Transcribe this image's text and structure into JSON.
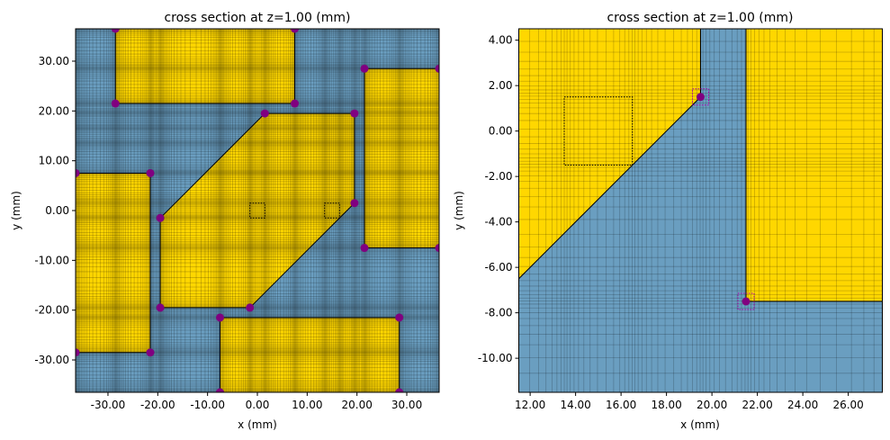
{
  "colors": {
    "background_medium": "#6a9ec0",
    "structure": "#ffd700",
    "mesh_line": "#000000",
    "vertex": "#800080",
    "vertex_box": "#aa00aa",
    "outline": "#000000"
  },
  "chart_data": [
    {
      "type": "cross-section",
      "title": "cross section at z=1.00 (mm)",
      "xlabel": "x (mm)",
      "ylabel": "y (mm)",
      "xlim": [
        -36.5,
        36.5
      ],
      "ylim": [
        -36.5,
        36.5
      ],
      "xticks": [
        -30,
        -20,
        -10,
        0,
        10,
        20,
        30
      ],
      "xtick_labels": [
        "-30.00",
        "-20.00",
        "-10.00",
        "0.00",
        "10.00",
        "20.00",
        "30.00"
      ],
      "yticks": [
        30,
        20,
        10,
        0,
        -10,
        -20,
        -30
      ],
      "ytick_labels": [
        "30.00",
        "20.00",
        "10.00",
        "0.00",
        "-10.00",
        "-20.00",
        "-30.00"
      ],
      "structures": [
        [
          [
            -28.5,
            21.5
          ],
          [
            7.5,
            21.5
          ],
          [
            7.5,
            36.5
          ],
          [
            -28.5,
            36.5
          ]
        ],
        [
          [
            21.5,
            -7.5
          ],
          [
            36.5,
            -7.5
          ],
          [
            36.5,
            28.5
          ],
          [
            21.5,
            28.5
          ]
        ],
        [
          [
            -36.5,
            -28.5
          ],
          [
            -21.5,
            -28.5
          ],
          [
            -21.5,
            7.5
          ],
          [
            -36.5,
            7.5
          ]
        ],
        [
          [
            -7.5,
            -36.5
          ],
          [
            28.5,
            -36.5
          ],
          [
            28.5,
            -21.5
          ],
          [
            -7.5,
            -21.5
          ]
        ],
        [
          [
            -19.5,
            -1.5
          ],
          [
            1.5,
            19.5
          ],
          [
            19.5,
            19.5
          ],
          [
            19.5,
            1.5
          ],
          [
            -1.5,
            -19.5
          ],
          [
            -19.5,
            -19.5
          ]
        ]
      ],
      "vertices": [
        [
          -28.5,
          36.5
        ],
        [
          7.5,
          36.5
        ],
        [
          -28.5,
          21.5
        ],
        [
          7.5,
          21.5
        ],
        [
          21.5,
          28.5
        ],
        [
          36.5,
          28.5
        ],
        [
          21.5,
          -7.5
        ],
        [
          36.5,
          -7.5
        ],
        [
          -36.5,
          7.5
        ],
        [
          -21.5,
          7.5
        ],
        [
          -36.5,
          -28.5
        ],
        [
          -21.5,
          -28.5
        ],
        [
          -7.5,
          -21.5
        ],
        [
          28.5,
          -21.5
        ],
        [
          -7.5,
          -36.5
        ],
        [
          28.5,
          -36.5
        ],
        [
          -19.5,
          -1.5
        ],
        [
          1.5,
          19.5
        ],
        [
          19.5,
          19.5
        ],
        [
          19.5,
          1.5
        ],
        [
          -1.5,
          -19.5
        ],
        [
          -19.5,
          -19.5
        ]
      ],
      "vertex_boxes": false,
      "dotted_boxes": [
        [
          -1.5,
          -1.5,
          1.5,
          1.5
        ],
        [
          13.5,
          -1.5,
          16.5,
          1.5
        ]
      ]
    },
    {
      "type": "cross-section",
      "title": "cross section at z=1.00 (mm)",
      "xlabel": "x (mm)",
      "ylabel": "y (mm)",
      "xlim": [
        11.5,
        27.5
      ],
      "ylim": [
        -11.5,
        4.5
      ],
      "xticks": [
        12,
        14,
        16,
        18,
        20,
        22,
        24,
        26
      ],
      "xtick_labels": [
        "12.00",
        "14.00",
        "16.00",
        "18.00",
        "20.00",
        "22.00",
        "24.00",
        "26.00"
      ],
      "yticks": [
        4,
        2,
        0,
        -2,
        -4,
        -6,
        -8,
        -10
      ],
      "ytick_labels": [
        "4.00",
        "2.00",
        "0.00",
        "-2.00",
        "-4.00",
        "-6.00",
        "-8.00",
        "-10.00"
      ],
      "structures": [
        [
          [
            21.5,
            -7.5
          ],
          [
            36.5,
            -7.5
          ],
          [
            36.5,
            28.5
          ],
          [
            21.5,
            28.5
          ]
        ],
        [
          [
            -19.5,
            -1.5
          ],
          [
            1.5,
            19.5
          ],
          [
            19.5,
            19.5
          ],
          [
            19.5,
            1.5
          ],
          [
            -1.5,
            -19.5
          ],
          [
            -19.5,
            -19.5
          ]
        ]
      ],
      "vertices": [
        [
          19.5,
          1.5
        ],
        [
          21.5,
          -7.5
        ]
      ],
      "vertex_boxes": true,
      "dotted_boxes": [
        [
          13.5,
          -1.5,
          16.5,
          1.5
        ]
      ]
    }
  ]
}
